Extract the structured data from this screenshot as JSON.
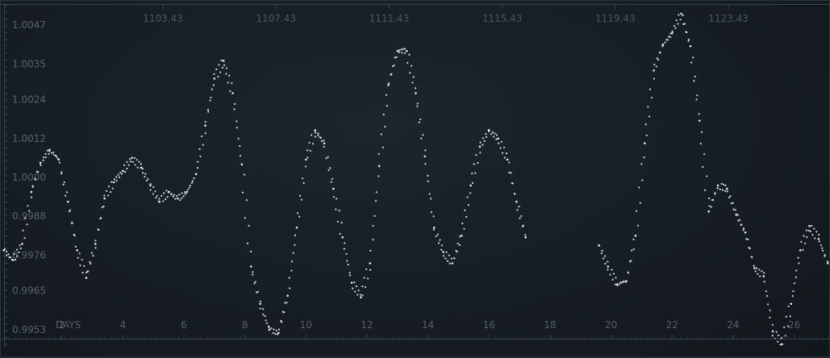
{
  "chart_data": {
    "type": "scatter",
    "title": "",
    "xlabel": "DAYS",
    "ylabel": "",
    "xlim": [
      0.0,
      27.2
    ],
    "ylim": [
      0.99475,
      1.00535
    ],
    "top_axis_labels": [
      "1103.43",
      "1107.43",
      "1111.43",
      "1115.43",
      "1119.43",
      "1123.43"
    ],
    "bottom_tick_labels": [
      "2",
      "4",
      "6",
      "8",
      "10",
      "12",
      "14",
      "16",
      "18",
      "20",
      "22",
      "24",
      "26"
    ],
    "y_tick_labels": [
      "1.0047",
      "1.0035",
      "1.0024",
      "1.0012",
      "1.0000",
      "0.9988",
      "0.9976",
      "0.9965",
      "0.9953"
    ],
    "background_color": "#161c22",
    "point_color": "#e6eaee",
    "grid": false,
    "series": [
      {
        "x": [
          0.1,
          0.4,
          0.7,
          1.0,
          1.3,
          1.6,
          1.9,
          2.2,
          2.5,
          2.8,
          3.1,
          3.4,
          3.7,
          4.0,
          4.3,
          4.6,
          4.9,
          5.2,
          5.5,
          5.8,
          6.1,
          6.4,
          6.7,
          7.0,
          7.3,
          7.6,
          7.9,
          8.2,
          8.5,
          8.8,
          9.1,
          9.4,
          9.7,
          10.0,
          10.3,
          10.6,
          10.9,
          11.2,
          11.5,
          11.8,
          12.1,
          12.4,
          12.7,
          13.0,
          13.3,
          13.6,
          13.9,
          14.2,
          14.5,
          14.8,
          15.1,
          15.4,
          15.7,
          16.0,
          16.3,
          16.6,
          16.9,
          17.2,
          19.6,
          19.9,
          20.2,
          20.5,
          20.8,
          21.1,
          21.4,
          21.7,
          22.0,
          22.3,
          22.6,
          22.9,
          23.2,
          23.5,
          23.8,
          24.1,
          24.4,
          24.7,
          25.0,
          25.3,
          25.6,
          25.9,
          26.2,
          26.5,
          26.8,
          27.1
        ],
        "y": [
          0.99775,
          0.99745,
          0.99795,
          0.99955,
          1.00045,
          1.00085,
          1.00055,
          0.99925,
          0.99775,
          0.9969,
          0.99795,
          0.99935,
          0.99985,
          1.0002,
          1.0006,
          1.0003,
          0.99975,
          0.99925,
          0.99955,
          0.99935,
          0.99955,
          1.0001,
          1.0016,
          1.00305,
          1.0036,
          1.0026,
          1.0004,
          0.99725,
          0.9961,
          0.9953,
          0.9952,
          0.99635,
          0.99845,
          1.00055,
          1.00145,
          1.00105,
          0.99965,
          0.99815,
          0.99675,
          0.9963,
          0.99735,
          1.00035,
          1.00285,
          1.0039,
          1.0039,
          1.0026,
          1.00065,
          0.99845,
          0.9977,
          0.99735,
          0.9982,
          0.99975,
          1.00095,
          1.00145,
          1.0012,
          1.00055,
          0.99925,
          0.99815,
          0.9979,
          0.99725,
          0.9967,
          0.9968,
          0.9982,
          1.00105,
          1.0033,
          1.0041,
          1.00445,
          1.00505,
          1.00405,
          1.00175,
          0.99895,
          0.99975,
          0.99965,
          0.99885,
          0.9983,
          0.9972,
          0.99695,
          0.99525,
          0.99485,
          0.9961,
          0.99775,
          0.9985,
          0.9981,
          0.99735
        ]
      }
    ]
  }
}
